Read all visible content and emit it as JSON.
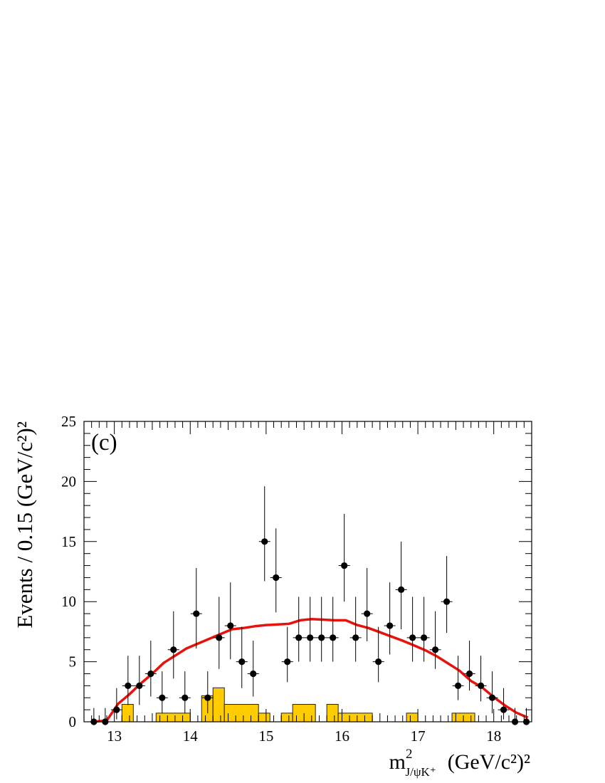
{
  "chart_data": {
    "type": "scatter",
    "panel_label": "(c)",
    "ylabel": "Events / 0.15 (GeV/c²)²",
    "xlabel_main": "m",
    "xlabel_sup": "2",
    "xlabel_sub": "J/ψK⁺",
    "xlabel_units": "(GeV/c²)²",
    "xlim": [
      12.6,
      18.5
    ],
    "ylim": [
      0,
      25
    ],
    "x_tick_labels": [
      "13",
      "14",
      "15",
      "16",
      "17",
      "18"
    ],
    "y_tick_labels": [
      "0",
      "5",
      "10",
      "15",
      "20",
      "25"
    ],
    "x_ticks": [
      13,
      14,
      15,
      16,
      17,
      18
    ],
    "y_ticks": [
      0,
      5,
      10,
      15,
      20,
      25
    ],
    "bin_width": 0.15,
    "data_points": {
      "x": [
        12.73,
        12.88,
        13.03,
        13.18,
        13.33,
        13.48,
        13.63,
        13.78,
        13.93,
        14.08,
        14.23,
        14.38,
        14.53,
        14.68,
        14.83,
        14.98,
        15.13,
        15.28,
        15.43,
        15.58,
        15.73,
        15.88,
        16.03,
        16.18,
        16.33,
        16.48,
        16.63,
        16.78,
        16.93,
        17.08,
        17.23,
        17.38,
        17.53,
        17.68,
        17.83,
        17.98,
        18.13,
        18.28,
        18.43
      ],
      "y": [
        0,
        0,
        1,
        3,
        3,
        4,
        2,
        6,
        2,
        9,
        2,
        7,
        8,
        5,
        4,
        15,
        12,
        5,
        7,
        7,
        7,
        7,
        13,
        7,
        9,
        5,
        8,
        11,
        7,
        7,
        6,
        10,
        3,
        4,
        3,
        2,
        1,
        0,
        0
      ],
      "err_up": [
        1.15,
        1.15,
        1.8,
        2.5,
        2.5,
        2.75,
        2.2,
        3.2,
        2.2,
        3.8,
        2.2,
        3.4,
        3.6,
        2.9,
        2.75,
        4.6,
        4.1,
        2.9,
        3.4,
        3.4,
        3.4,
        3.4,
        4.3,
        3.4,
        3.8,
        2.9,
        3.6,
        4.0,
        3.4,
        3.4,
        3.2,
        3.8,
        2.5,
        2.75,
        2.5,
        2.2,
        1.8,
        1.15,
        1.15
      ],
      "err_down": [
        0,
        0,
        0.8,
        1.6,
        1.6,
        1.9,
        1.3,
        2.4,
        1.3,
        2.9,
        1.3,
        2.6,
        2.8,
        2.2,
        1.9,
        3.3,
        2.9,
        1.7,
        2.0,
        2.0,
        2.0,
        2.0,
        3.0,
        2.0,
        2.3,
        1.7,
        2.4,
        3.3,
        2.0,
        2.0,
        1.6,
        2.6,
        1.2,
        1.4,
        1.3,
        1.3,
        0.8,
        0,
        0
      ]
    },
    "background_histogram": {
      "color": "#ffcc00",
      "bins": [
        {
          "x0": 13.1,
          "x1": 13.25,
          "y": 1.45
        },
        {
          "x0": 13.55,
          "x1": 14.0,
          "y": 0.72
        },
        {
          "x0": 14.15,
          "x1": 14.3,
          "y": 2.17
        },
        {
          "x0": 14.3,
          "x1": 14.45,
          "y": 2.83
        },
        {
          "x0": 14.45,
          "x1": 14.9,
          "y": 1.45
        },
        {
          "x0": 14.9,
          "x1": 15.05,
          "y": 0.72
        },
        {
          "x0": 15.2,
          "x1": 15.35,
          "y": 0.72
        },
        {
          "x0": 15.35,
          "x1": 15.65,
          "y": 1.45
        },
        {
          "x0": 15.8,
          "x1": 15.95,
          "y": 1.45
        },
        {
          "x0": 15.95,
          "x1": 16.4,
          "y": 0.72
        },
        {
          "x0": 16.85,
          "x1": 17.0,
          "y": 0.72
        },
        {
          "x0": 17.45,
          "x1": 17.75,
          "y": 0.72
        }
      ]
    },
    "fit_curve": {
      "color": "#e8120c",
      "x": [
        12.7,
        12.9,
        13.05,
        13.2,
        13.35,
        13.5,
        13.65,
        13.8,
        13.95,
        14.1,
        14.25,
        14.4,
        14.55,
        14.7,
        14.85,
        15.0,
        15.15,
        15.3,
        15.45,
        15.6,
        15.75,
        15.9,
        16.05,
        16.2,
        16.35,
        16.5,
        16.65,
        16.8,
        16.95,
        17.1,
        17.25,
        17.4,
        17.55,
        17.7,
        17.85,
        18.0,
        18.15,
        18.3,
        18.45
      ],
      "y": [
        0,
        0.1,
        1.5,
        2.3,
        3.2,
        4.0,
        4.9,
        5.5,
        6.1,
        6.5,
        6.9,
        7.3,
        7.7,
        7.8,
        7.95,
        8.05,
        8.1,
        8.15,
        8.45,
        8.55,
        8.5,
        8.45,
        8.45,
        8.05,
        7.8,
        7.45,
        7.1,
        6.75,
        6.35,
        5.95,
        5.45,
        4.85,
        4.25,
        3.4,
        2.85,
        2.05,
        1.35,
        0.75,
        0.35
      ]
    }
  }
}
